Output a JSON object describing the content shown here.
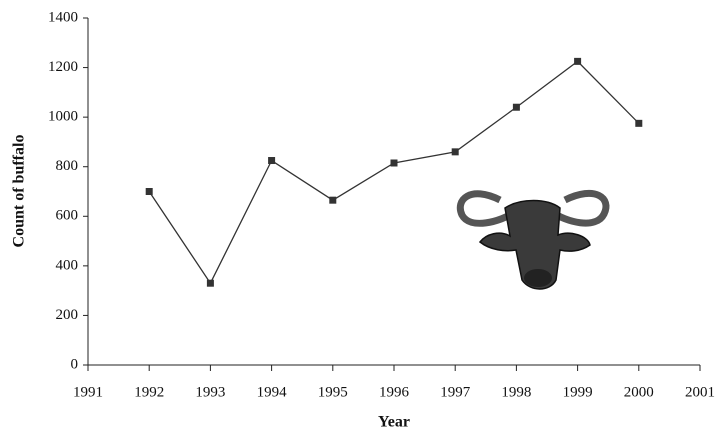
{
  "chart_data": {
    "type": "line",
    "x_label": "Year",
    "y_label": "Count of buffalo",
    "x": [
      1992,
      1993,
      1994,
      1995,
      1996,
      1997,
      1998,
      1999,
      2000
    ],
    "series": [
      {
        "color": "#333333",
        "values": [
          700,
          330,
          825,
          665,
          815,
          860,
          1040,
          1225,
          975
        ]
      }
    ],
    "xlim": [
      1991,
      2001
    ],
    "xticks": [
      1991,
      1992,
      1993,
      1994,
      1995,
      1996,
      1997,
      1998,
      1999,
      2000,
      2001
    ],
    "ylim": [
      0,
      1400
    ],
    "yticks": [
      0,
      200,
      400,
      600,
      800,
      1000,
      1200,
      1400
    ]
  }
}
